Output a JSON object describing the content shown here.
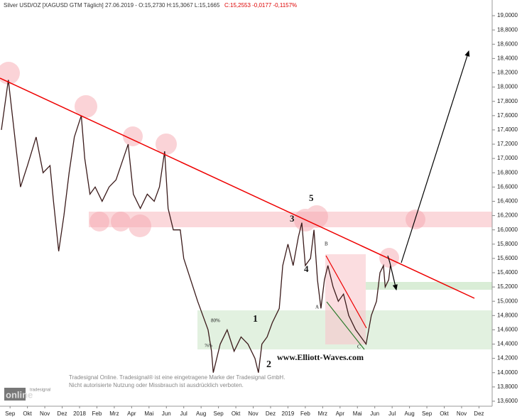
{
  "chart_data": {
    "type": "line",
    "title": "Silver USD/OZ [XAGUSD GTM  Täglich] 27.06.2019 - O:15,2730 H:15,3067 L:15,1665",
    "subtitle": "C:15,2553 -0,0177 -0,1157%",
    "x": [
      0,
      0.4,
      1.1,
      1.5,
      2.0,
      2.4,
      2.8,
      3.0,
      3.3,
      3.6,
      3.9,
      4.2,
      4.6,
      4.8,
      5.1,
      5.4,
      5.8,
      6.2,
      6.6,
      7.3,
      7.6,
      8.0,
      8.4,
      8.8,
      9.1,
      9.4,
      9.6,
      9.9,
      10.3,
      10.5,
      10.9,
      11.3,
      11.6,
      11.9,
      12.1,
      12.2,
      12.6,
      13.0,
      13.4,
      13.8,
      14.2,
      14.6,
      14.8,
      15.0,
      15.3,
      15.6,
      16.0,
      16.2,
      16.5,
      16.8,
      17.1,
      17.3,
      17.5,
      17.8,
      18.0,
      18.2,
      18.4,
      18.6,
      18.8,
      19.1,
      19.4,
      19.7,
      20.0,
      20.4,
      20.7,
      21.0,
      21.3,
      21.6,
      21.8,
      22.0,
      22.1,
      22.3,
      22.4
    ],
    "series": [
      {
        "name": "Silver USD/OZ",
        "color": "#3a1a1a",
        "values": [
          17.4,
          18.1,
          16.6,
          16.9,
          17.3,
          16.8,
          16.9,
          16.4,
          15.7,
          16.2,
          16.8,
          17.3,
          17.6,
          17.0,
          16.5,
          16.6,
          16.4,
          16.6,
          16.7,
          17.2,
          16.5,
          16.3,
          16.5,
          16.4,
          16.6,
          17.1,
          16.3,
          16.0,
          16.0,
          15.6,
          15.3,
          15.0,
          14.8,
          14.6,
          14.3,
          14.0,
          14.4,
          14.6,
          14.3,
          14.5,
          14.4,
          14.2,
          14.0,
          14.4,
          14.5,
          14.7,
          14.9,
          15.5,
          15.8,
          15.5,
          15.9,
          16.1,
          15.5,
          15.6,
          16.0,
          15.3,
          14.9,
          15.3,
          15.5,
          15.2,
          15.0,
          15.1,
          14.8,
          14.6,
          14.5,
          14.4,
          14.8,
          15.0,
          15.4,
          15.5,
          15.2,
          15.3,
          15.5
        ]
      }
    ],
    "xlim": [
      -0.08,
      28.26
    ],
    "ylim": [
      13.53,
      19.12
    ],
    "xticks": [
      {
        "value": 0.5,
        "label": "Sep"
      },
      {
        "value": 1.5,
        "label": "Okt"
      },
      {
        "value": 2.5,
        "label": "Nov"
      },
      {
        "value": 3.5,
        "label": "Dez"
      },
      {
        "value": 4.5,
        "label": "2018"
      },
      {
        "value": 5.5,
        "label": "Feb"
      },
      {
        "value": 6.5,
        "label": "Mrz"
      },
      {
        "value": 7.5,
        "label": "Apr"
      },
      {
        "value": 8.5,
        "label": "Mai"
      },
      {
        "value": 9.5,
        "label": "Jun"
      },
      {
        "value": 10.5,
        "label": "Jul"
      },
      {
        "value": 11.5,
        "label": "Aug"
      },
      {
        "value": 12.5,
        "label": "Sep"
      },
      {
        "value": 13.5,
        "label": "Okt"
      },
      {
        "value": 14.5,
        "label": "Nov"
      },
      {
        "value": 15.5,
        "label": "Dez"
      },
      {
        "value": 16.5,
        "label": "2019"
      },
      {
        "value": 17.5,
        "label": "Feb"
      },
      {
        "value": 18.5,
        "label": "Mrz"
      },
      {
        "value": 19.5,
        "label": "Apr"
      },
      {
        "value": 20.5,
        "label": "Mai"
      },
      {
        "value": 21.5,
        "label": "Jun"
      },
      {
        "value": 22.5,
        "label": "Jul"
      },
      {
        "value": 23.5,
        "label": "Aug"
      },
      {
        "value": 24.5,
        "label": "Sep"
      },
      {
        "value": 25.5,
        "label": "Okt"
      },
      {
        "value": 26.5,
        "label": "Nov"
      },
      {
        "value": 27.5,
        "label": "Dez"
      }
    ],
    "yticks": [
      {
        "value": 13.6,
        "label": "13,6000"
      },
      {
        "value": 13.8,
        "label": "13,8000"
      },
      {
        "value": 14.0,
        "label": "14,0000"
      },
      {
        "value": 14.2,
        "label": "14,2000"
      },
      {
        "value": 14.4,
        "label": "14,4000"
      },
      {
        "value": 14.6,
        "label": "14,6000"
      },
      {
        "value": 14.8,
        "label": "14,8000"
      },
      {
        "value": 15.0,
        "label": "15,0000"
      },
      {
        "value": 15.2,
        "label": "15,2000"
      },
      {
        "value": 15.4,
        "label": "15,4000"
      },
      {
        "value": 15.6,
        "label": "15,6000"
      },
      {
        "value": 15.8,
        "label": "15,8000"
      },
      {
        "value": 16.0,
        "label": "16,0000"
      },
      {
        "value": 16.2,
        "label": "16,2000"
      },
      {
        "value": 16.4,
        "label": "16,4000"
      },
      {
        "value": 16.6,
        "label": "16,6000"
      },
      {
        "value": 16.8,
        "label": "16,8000"
      },
      {
        "value": 17.0,
        "label": "17,0000"
      },
      {
        "value": 17.2,
        "label": "17,2000"
      },
      {
        "value": 17.4,
        "label": "17,4000"
      },
      {
        "value": 17.6,
        "label": "17,6000"
      },
      {
        "value": 17.8,
        "label": "17,8000"
      },
      {
        "value": 18.0,
        "label": "18,0000"
      },
      {
        "value": 18.2,
        "label": "18,2000"
      },
      {
        "value": 18.4,
        "label": "18,4000"
      },
      {
        "value": 18.6,
        "label": "18,6000"
      },
      {
        "value": 18.8,
        "label": "18,8000"
      },
      {
        "value": 19.0,
        "label": "19,0000"
      }
    ],
    "grid": false,
    "annotations": [
      "1",
      "2",
      "3",
      "4",
      "5",
      "A",
      "B",
      "C",
      "www.Elliott-Waves.com",
      "80%",
      "76%"
    ],
    "footer": [
      "Tradesignal Online. Tradesignal® ist eine eingetragene Marke der Tradesignal GmbH.",
      "Nicht autorisierte Nutzung oder Missbrauch ist ausdrücklich verboten."
    ],
    "logo": [
      "tradesignal",
      "online"
    ]
  }
}
